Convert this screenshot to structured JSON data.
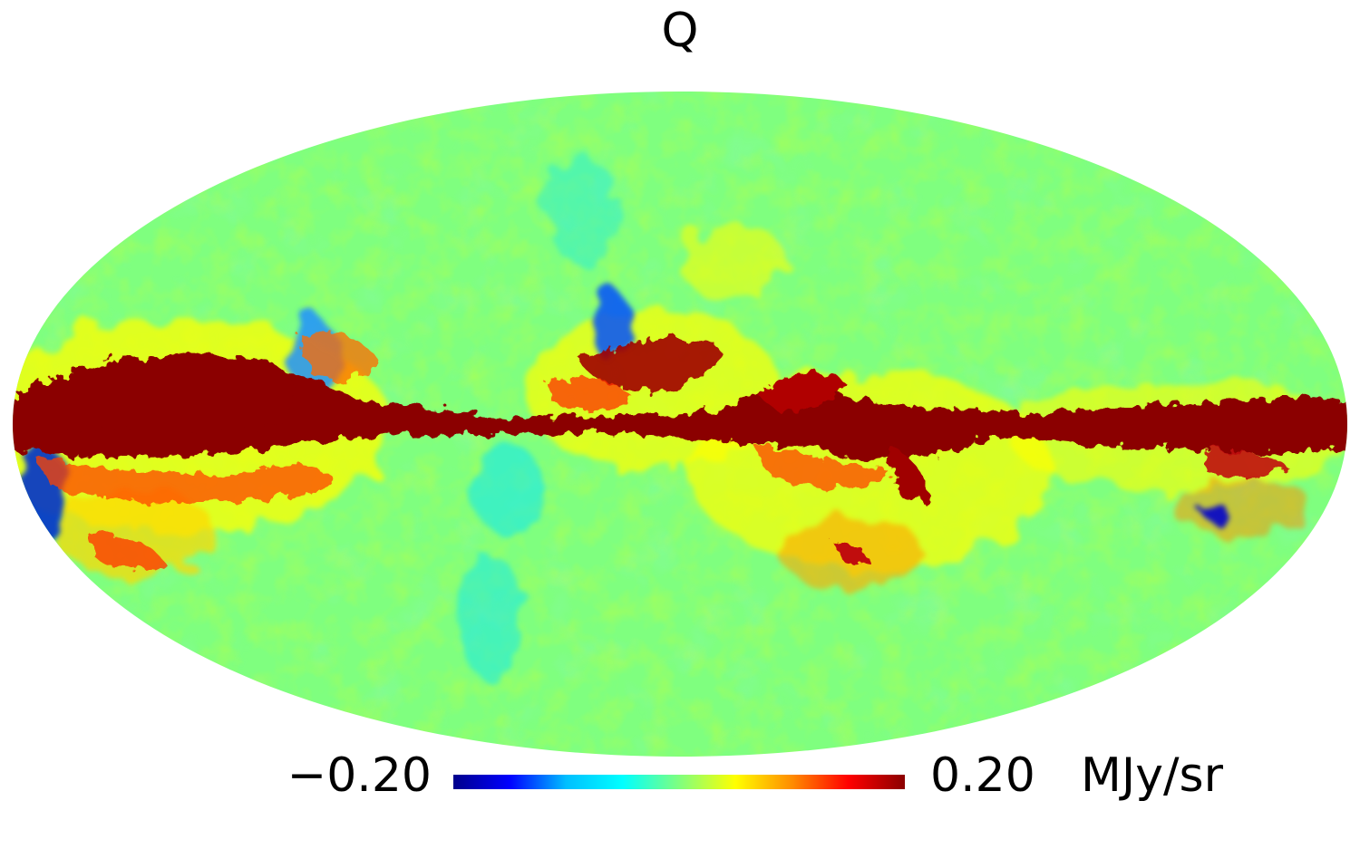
{
  "map": {
    "title": "Q",
    "projection": "Mollweide",
    "description_colors": {
      "background_field": "#7fff7f"
    }
  },
  "colorbar": {
    "min_label": "−0.20",
    "max_label": "0.20",
    "unit": "MJy/sr",
    "min_value": -0.2,
    "max_value": 0.2,
    "colormap": [
      "#00008b",
      "#0000ff",
      "#00bfff",
      "#00ffff",
      "#7fff7f",
      "#ffff00",
      "#ff8c00",
      "#ff0000",
      "#8b0000"
    ]
  }
}
